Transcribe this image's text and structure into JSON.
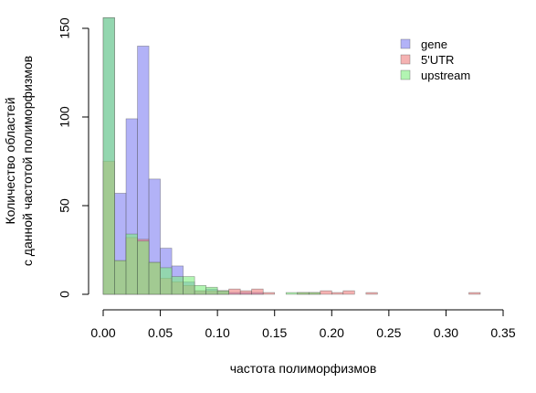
{
  "chart_data": {
    "type": "bar",
    "subtype": "overlaid-histogram",
    "xlabel": "частота полиморфизмов",
    "ylabel_lines": [
      "Количество областей",
      "с данной частотой полиморфизмов"
    ],
    "xlim": [
      0,
      0.35
    ],
    "ylim": [
      0,
      150
    ],
    "x_ticks": [
      "0.00",
      "0.05",
      "0.10",
      "0.15",
      "0.20",
      "0.25",
      "0.30",
      "0.35"
    ],
    "y_ticks": [
      "0",
      "50",
      "100",
      "150"
    ],
    "bin_width": 0.01,
    "legend_position": "top-right",
    "series": [
      {
        "name": "gene",
        "color": "#7f7ff2",
        "bins": [
          {
            "x": 0.0,
            "y": 156
          },
          {
            "x": 0.01,
            "y": 57
          },
          {
            "x": 0.02,
            "y": 99
          },
          {
            "x": 0.03,
            "y": 140
          },
          {
            "x": 0.04,
            "y": 65
          },
          {
            "x": 0.05,
            "y": 26
          },
          {
            "x": 0.06,
            "y": 16
          },
          {
            "x": 0.07,
            "y": 7
          },
          {
            "x": 0.08,
            "y": 2
          },
          {
            "x": 0.09,
            "y": 3
          },
          {
            "x": 0.1,
            "y": 2
          },
          {
            "x": 0.11,
            "y": 1
          },
          {
            "x": 0.12,
            "y": 1
          },
          {
            "x": 0.13,
            "y": 1
          }
        ]
      },
      {
        "name": "5'UTR",
        "color": "#ee7f7f",
        "bins": [
          {
            "x": 0.0,
            "y": 75
          },
          {
            "x": 0.01,
            "y": 19
          },
          {
            "x": 0.02,
            "y": 32
          },
          {
            "x": 0.03,
            "y": 31
          },
          {
            "x": 0.04,
            "y": 18
          },
          {
            "x": 0.05,
            "y": 9
          },
          {
            "x": 0.06,
            "y": 7
          },
          {
            "x": 0.07,
            "y": 5
          },
          {
            "x": 0.08,
            "y": 2
          },
          {
            "x": 0.09,
            "y": 2
          },
          {
            "x": 0.1,
            "y": 2
          },
          {
            "x": 0.11,
            "y": 3
          },
          {
            "x": 0.12,
            "y": 2
          },
          {
            "x": 0.13,
            "y": 3
          },
          {
            "x": 0.14,
            "y": 1
          },
          {
            "x": 0.17,
            "y": 1
          },
          {
            "x": 0.18,
            "y": 1
          },
          {
            "x": 0.19,
            "y": 2
          },
          {
            "x": 0.2,
            "y": 1
          },
          {
            "x": 0.21,
            "y": 2
          },
          {
            "x": 0.23,
            "y": 1
          },
          {
            "x": 0.32,
            "y": 1
          }
        ]
      },
      {
        "name": "upstream",
        "color": "#7fee7f",
        "bins": [
          {
            "x": 0.0,
            "y": 156
          },
          {
            "x": 0.01,
            "y": 19
          },
          {
            "x": 0.02,
            "y": 34
          },
          {
            "x": 0.03,
            "y": 30
          },
          {
            "x": 0.04,
            "y": 18
          },
          {
            "x": 0.05,
            "y": 15
          },
          {
            "x": 0.06,
            "y": 10
          },
          {
            "x": 0.07,
            "y": 10
          },
          {
            "x": 0.08,
            "y": 5
          },
          {
            "x": 0.09,
            "y": 4
          },
          {
            "x": 0.1,
            "y": 2
          },
          {
            "x": 0.16,
            "y": 1
          },
          {
            "x": 0.17,
            "y": 1
          },
          {
            "x": 0.18,
            "y": 1
          }
        ]
      }
    ]
  }
}
